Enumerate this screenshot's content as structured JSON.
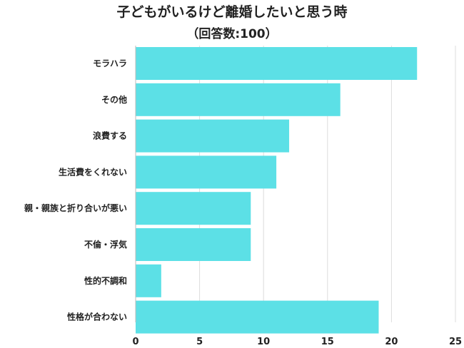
{
  "chart_data": {
    "type": "bar",
    "orientation": "horizontal",
    "title": "子どもがいるけど離婚したいと思う時",
    "subtitle": "（回答数:100）",
    "categories": [
      "モラハラ",
      "その他",
      "浪費する",
      "生活費をくれない",
      "親・親族と折り合いが悪い",
      "不倫・浮気",
      "性的不調和",
      "性格が合わない"
    ],
    "values": [
      22,
      16,
      12,
      11,
      9,
      9,
      2,
      19
    ],
    "xlim": [
      0,
      25
    ],
    "xticks": [
      0,
      5,
      10,
      15,
      20,
      25
    ],
    "grid": true,
    "bar_color": "#5ce0e6",
    "grid_color": "#dddddd"
  }
}
